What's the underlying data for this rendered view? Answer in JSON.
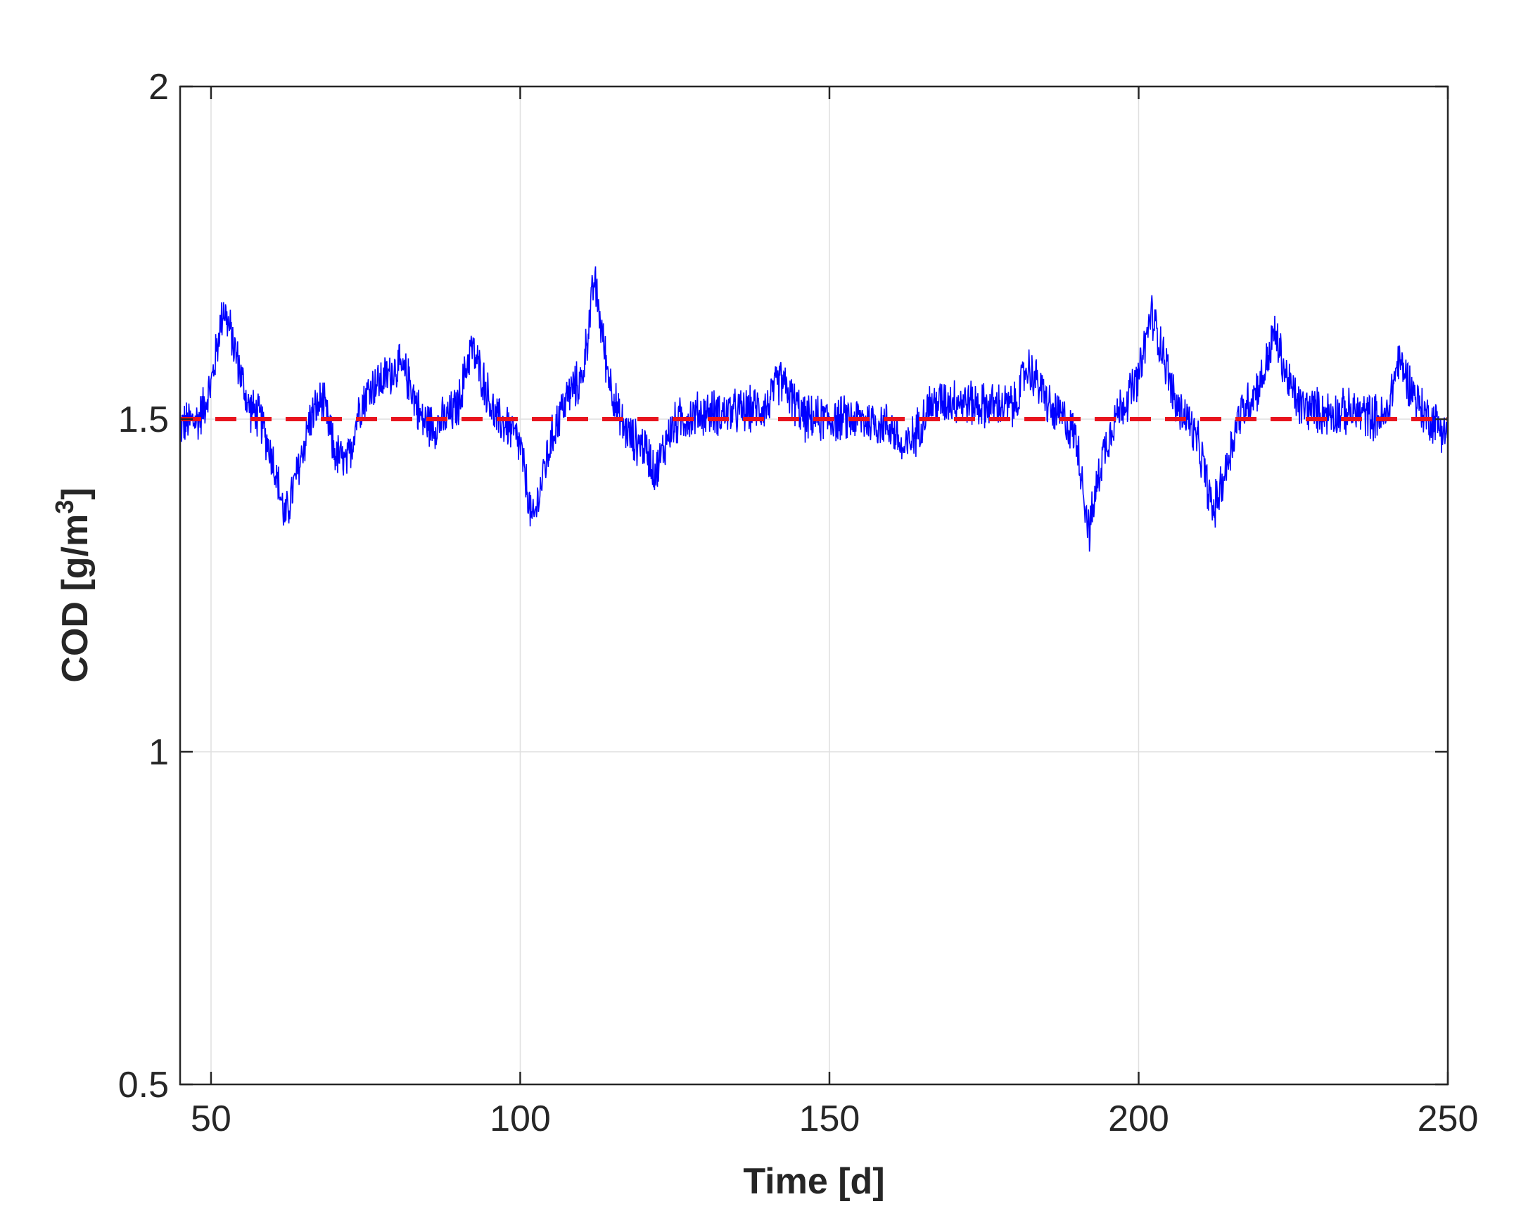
{
  "chart_data": {
    "type": "line",
    "title": "",
    "xlabel": "Time [d]",
    "ylabel": "COD [g/m",
    "ylabel_sup": "3",
    "ylabel_end": "]",
    "xlim": [
      45,
      250
    ],
    "ylim": [
      0.5,
      2
    ],
    "xticks": [
      50,
      100,
      150,
      200,
      250
    ],
    "yticks": [
      0.5,
      1,
      1.5,
      2
    ],
    "xtick_labels": [
      "50",
      "100",
      "150",
      "200",
      "250"
    ],
    "ytick_labels": [
      "0.5",
      "1",
      "1.5",
      "2"
    ],
    "grid": true,
    "legend": "none",
    "series": [
      {
        "style": "solid",
        "color": "#0000ff",
        "noise_amplitude": 0.04,
        "x": [
          45,
          48,
          50,
          52,
          54,
          56,
          58,
          60,
          62,
          64,
          66,
          68,
          70,
          72,
          74,
          76,
          78,
          80,
          82,
          84,
          86,
          88,
          90,
          92,
          94,
          96,
          98,
          100,
          102,
          104,
          106,
          108,
          110,
          112,
          114,
          116,
          118,
          120,
          122,
          124,
          126,
          130,
          135,
          140,
          142,
          144,
          146,
          150,
          155,
          160,
          162,
          164,
          166,
          170,
          175,
          180,
          182,
          184,
          186,
          188,
          190,
          192,
          194,
          196,
          198,
          200,
          202,
          204,
          206,
          208,
          210,
          212,
          214,
          216,
          218,
          220,
          222,
          224,
          226,
          230,
          235,
          240,
          242,
          244,
          246,
          250
        ],
        "y": [
          1.49,
          1.5,
          1.55,
          1.67,
          1.6,
          1.52,
          1.5,
          1.44,
          1.35,
          1.42,
          1.5,
          1.53,
          1.45,
          1.43,
          1.52,
          1.55,
          1.56,
          1.58,
          1.56,
          1.5,
          1.49,
          1.5,
          1.52,
          1.61,
          1.56,
          1.5,
          1.49,
          1.46,
          1.34,
          1.43,
          1.5,
          1.54,
          1.56,
          1.71,
          1.58,
          1.5,
          1.47,
          1.46,
          1.42,
          1.48,
          1.5,
          1.51,
          1.51,
          1.52,
          1.56,
          1.53,
          1.5,
          1.5,
          1.5,
          1.49,
          1.45,
          1.48,
          1.52,
          1.53,
          1.52,
          1.52,
          1.58,
          1.55,
          1.51,
          1.5,
          1.47,
          1.33,
          1.44,
          1.5,
          1.53,
          1.56,
          1.66,
          1.6,
          1.52,
          1.5,
          1.45,
          1.36,
          1.42,
          1.5,
          1.53,
          1.56,
          1.63,
          1.56,
          1.52,
          1.51,
          1.51,
          1.5,
          1.59,
          1.55,
          1.51,
          1.48
        ]
      },
      {
        "style": "dashed",
        "color": "#e8141e",
        "x": [
          45,
          250
        ],
        "y": [
          1.5,
          1.5
        ]
      }
    ]
  }
}
